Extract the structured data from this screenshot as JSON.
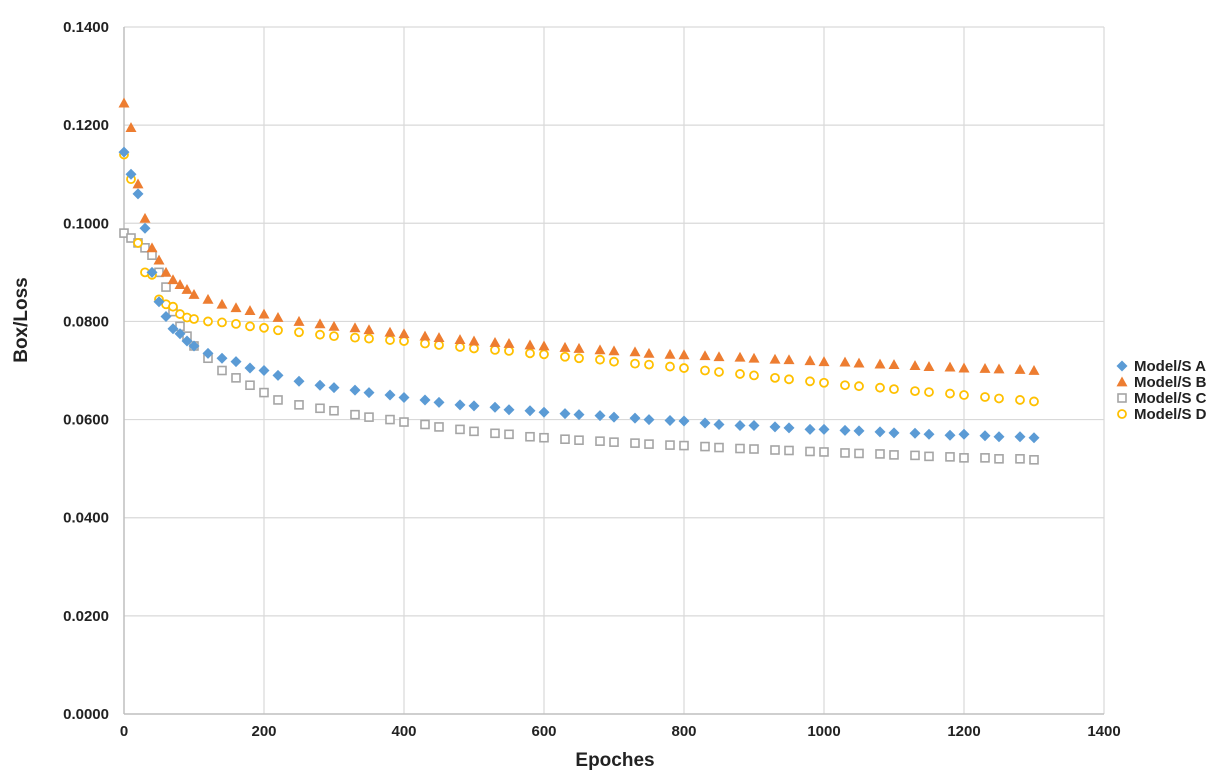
{
  "chart_data": {
    "type": "scatter",
    "title": "",
    "xlabel": "Epoches",
    "ylabel": "Box/Loss",
    "xlim": [
      0,
      1400
    ],
    "ylim": [
      0,
      0.14
    ],
    "x_ticks": [
      "0",
      "200",
      "400",
      "600",
      "800",
      "1000",
      "1200",
      "1400"
    ],
    "y_ticks": [
      "0.0000",
      "0.0200",
      "0.0400",
      "0.0600",
      "0.0800",
      "0.1000",
      "0.1200",
      "0.1400"
    ],
    "grid": true,
    "legend_position": "right",
    "x_step": 10,
    "series": [
      {
        "name": "Model/S A",
        "color": "#5B9BD5",
        "marker": "diamond",
        "x": [
          0,
          10,
          20,
          30,
          40,
          50,
          60,
          70,
          80,
          90,
          100,
          120,
          140,
          160,
          180,
          200,
          220,
          250,
          280,
          300,
          330,
          350,
          380,
          400,
          430,
          450,
          480,
          500,
          530,
          550,
          580,
          600,
          630,
          650,
          680,
          700,
          730,
          750,
          780,
          800,
          830,
          850,
          880,
          900,
          930,
          950,
          980,
          1000,
          1030,
          1050,
          1080,
          1100,
          1130,
          1150,
          1180,
          1200,
          1230,
          1250,
          1280,
          1300
        ],
        "y": [
          0.1145,
          0.11,
          0.106,
          0.099,
          0.09,
          0.084,
          0.081,
          0.0785,
          0.0775,
          0.076,
          0.075,
          0.0735,
          0.0725,
          0.0718,
          0.0705,
          0.07,
          0.069,
          0.0678,
          0.067,
          0.0665,
          0.066,
          0.0655,
          0.065,
          0.0645,
          0.064,
          0.0635,
          0.063,
          0.0628,
          0.0625,
          0.062,
          0.0618,
          0.0615,
          0.0612,
          0.061,
          0.0608,
          0.0605,
          0.0603,
          0.06,
          0.0598,
          0.0597,
          0.0593,
          0.059,
          0.0588,
          0.0588,
          0.0585,
          0.0583,
          0.058,
          0.058,
          0.0578,
          0.0577,
          0.0575,
          0.0573,
          0.0572,
          0.057,
          0.0568,
          0.057,
          0.0567,
          0.0565,
          0.0565,
          0.0563
        ]
      },
      {
        "name": "Model/S B",
        "color": "#ED7D31",
        "marker": "triangle",
        "x": [
          0,
          10,
          20,
          30,
          40,
          50,
          60,
          70,
          80,
          90,
          100,
          120,
          140,
          160,
          180,
          200,
          220,
          250,
          280,
          300,
          330,
          350,
          380,
          400,
          430,
          450,
          480,
          500,
          530,
          550,
          580,
          600,
          630,
          650,
          680,
          700,
          730,
          750,
          780,
          800,
          830,
          850,
          880,
          900,
          930,
          950,
          980,
          1000,
          1030,
          1050,
          1080,
          1100,
          1130,
          1150,
          1180,
          1200,
          1230,
          1250,
          1280,
          1300
        ],
        "y": [
          0.1245,
          0.1195,
          0.108,
          0.101,
          0.095,
          0.0925,
          0.09,
          0.0885,
          0.0875,
          0.0865,
          0.0855,
          0.0845,
          0.0835,
          0.0828,
          0.0822,
          0.0815,
          0.0808,
          0.08,
          0.0795,
          0.079,
          0.0787,
          0.0783,
          0.0778,
          0.0775,
          0.077,
          0.0767,
          0.0763,
          0.076,
          0.0757,
          0.0755,
          0.0752,
          0.075,
          0.0747,
          0.0745,
          0.0742,
          0.074,
          0.0738,
          0.0735,
          0.0733,
          0.0732,
          0.073,
          0.0728,
          0.0727,
          0.0725,
          0.0723,
          0.0722,
          0.072,
          0.0718,
          0.0717,
          0.0715,
          0.0713,
          0.0712,
          0.071,
          0.0708,
          0.0707,
          0.0705,
          0.0704,
          0.0703,
          0.0702,
          0.07
        ]
      },
      {
        "name": "Model/S C",
        "color": "#A5A5A5",
        "marker": "square-open",
        "x": [
          0,
          10,
          20,
          30,
          40,
          50,
          60,
          70,
          80,
          90,
          100,
          120,
          140,
          160,
          180,
          200,
          220,
          250,
          280,
          300,
          330,
          350,
          380,
          400,
          430,
          450,
          480,
          500,
          530,
          550,
          580,
          600,
          630,
          650,
          680,
          700,
          730,
          750,
          780,
          800,
          830,
          850,
          880,
          900,
          930,
          950,
          980,
          1000,
          1030,
          1050,
          1080,
          1100,
          1130,
          1150,
          1180,
          1200,
          1230,
          1250,
          1280,
          1300
        ],
        "y": [
          0.098,
          0.097,
          0.096,
          0.095,
          0.0935,
          0.09,
          0.087,
          0.082,
          0.079,
          0.077,
          0.075,
          0.0725,
          0.07,
          0.0685,
          0.067,
          0.0655,
          0.064,
          0.063,
          0.0623,
          0.0618,
          0.061,
          0.0605,
          0.06,
          0.0595,
          0.059,
          0.0585,
          0.058,
          0.0576,
          0.0572,
          0.057,
          0.0565,
          0.0563,
          0.056,
          0.0558,
          0.0556,
          0.0554,
          0.0552,
          0.055,
          0.0548,
          0.0547,
          0.0545,
          0.0543,
          0.0541,
          0.054,
          0.0538,
          0.0537,
          0.0535,
          0.0534,
          0.0532,
          0.0531,
          0.053,
          0.0528,
          0.0527,
          0.0525,
          0.0524,
          0.0522,
          0.0522,
          0.052,
          0.052,
          0.0518
        ]
      },
      {
        "name": "Model/S D",
        "color": "#FFC000",
        "marker": "circle-open",
        "x": [
          0,
          10,
          20,
          30,
          40,
          50,
          60,
          70,
          80,
          90,
          100,
          120,
          140,
          160,
          180,
          200,
          220,
          250,
          280,
          300,
          330,
          350,
          380,
          400,
          430,
          450,
          480,
          500,
          530,
          550,
          580,
          600,
          630,
          650,
          680,
          700,
          730,
          750,
          780,
          800,
          830,
          850,
          880,
          900,
          930,
          950,
          980,
          1000,
          1030,
          1050,
          1080,
          1100,
          1130,
          1150,
          1180,
          1200,
          1230,
          1250,
          1280,
          1300
        ],
        "y": [
          0.114,
          0.109,
          0.096,
          0.09,
          0.0895,
          0.0845,
          0.0835,
          0.083,
          0.0815,
          0.0808,
          0.0805,
          0.08,
          0.0798,
          0.0795,
          0.079,
          0.0787,
          0.0782,
          0.0778,
          0.0773,
          0.077,
          0.0767,
          0.0765,
          0.0762,
          0.076,
          0.0755,
          0.0752,
          0.0748,
          0.0745,
          0.0742,
          0.074,
          0.0735,
          0.0733,
          0.0728,
          0.0725,
          0.0722,
          0.0718,
          0.0714,
          0.0712,
          0.0708,
          0.0705,
          0.07,
          0.0697,
          0.0693,
          0.069,
          0.0685,
          0.0682,
          0.0678,
          0.0675,
          0.067,
          0.0668,
          0.0665,
          0.0662,
          0.0658,
          0.0656,
          0.0653,
          0.065,
          0.0646,
          0.0643,
          0.064,
          0.0637
        ]
      }
    ]
  }
}
